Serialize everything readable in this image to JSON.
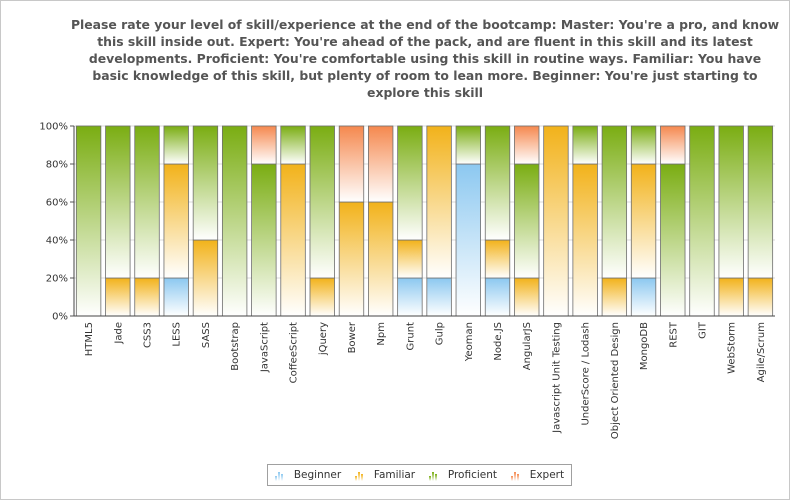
{
  "chart_data": {
    "type": "bar",
    "stacked": true,
    "percent": true,
    "title": "Please rate your level of skill/experience at the end of the bootcamp:  Master: You're a pro, and know this skill inside out. Expert: You're ahead of the pack, and are fluent in this skill and its latest developments. Proficient: You're comfortable using this skill in routine ways. Familiar: You have basic knowledge of this skill, but plenty of room to lean more. Beginner: You're just starting to explore this skill",
    "ylim": [
      0,
      100
    ],
    "yticks": [
      "0%",
      "20%",
      "40%",
      "60%",
      "80%",
      "100%"
    ],
    "grid": true,
    "legend_position": "bottom",
    "categories": [
      "HTML5",
      "Jade",
      "CSS3",
      "LESS",
      "SASS",
      "Bootstrap",
      "JavaScript",
      "CoffeeScript",
      "jQuery",
      "Bower",
      "Npm",
      "Grunt",
      "Gulp",
      "Yeoman",
      "Node.JS",
      "AngularJS",
      "Javascript Unit Testing",
      "UnderScore / Lodash",
      "Object Oriented Design",
      "MongoDB",
      "REST",
      "GIT",
      "WebStorm",
      "Agile/Scrum"
    ],
    "series": [
      {
        "name": "Beginner",
        "color": "#8cc8f0",
        "values": [
          0,
          0,
          0,
          20,
          0,
          0,
          0,
          0,
          0,
          0,
          0,
          20,
          20,
          80,
          20,
          0,
          0,
          0,
          0,
          20,
          0,
          0,
          0,
          0
        ]
      },
      {
        "name": "Familiar",
        "color": "#f2b21a",
        "values": [
          0,
          20,
          20,
          60,
          40,
          0,
          0,
          80,
          20,
          60,
          60,
          20,
          80,
          0,
          20,
          20,
          100,
          80,
          20,
          60,
          0,
          0,
          20,
          20
        ]
      },
      {
        "name": "Proficient",
        "color": "#7aad12",
        "values": [
          100,
          80,
          80,
          20,
          60,
          100,
          80,
          20,
          80,
          0,
          0,
          60,
          0,
          20,
          60,
          60,
          0,
          20,
          80,
          20,
          80,
          100,
          80,
          80
        ]
      },
      {
        "name": "Expert",
        "color": "#f5884e",
        "values": [
          0,
          0,
          0,
          0,
          0,
          0,
          20,
          0,
          0,
          40,
          40,
          0,
          0,
          0,
          0,
          20,
          0,
          0,
          0,
          0,
          20,
          0,
          0,
          0
        ]
      }
    ]
  },
  "legend": {
    "items": [
      {
        "label": "Beginner",
        "icon": "bar-chart-icon",
        "color": "#8cc8f0"
      },
      {
        "label": "Familiar",
        "icon": "bar-chart-icon",
        "color": "#f2b21a"
      },
      {
        "label": "Proficient",
        "icon": "bar-chart-icon",
        "color": "#7aad12"
      },
      {
        "label": "Expert",
        "icon": "bar-chart-icon",
        "color": "#f5884e"
      }
    ]
  }
}
